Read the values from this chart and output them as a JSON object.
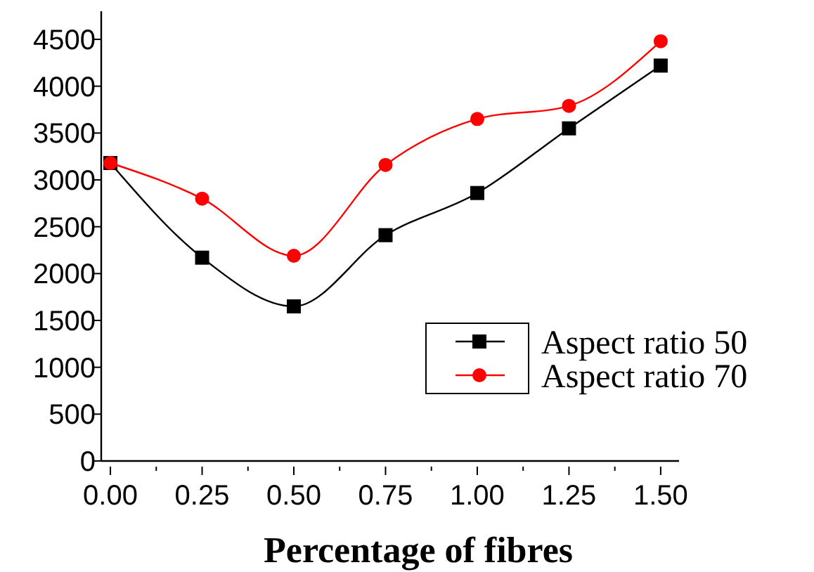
{
  "chart_data": {
    "type": "line",
    "xlabel": "Percentage of fibres",
    "x": [
      0,
      0.25,
      0.5,
      0.75,
      1.0,
      1.25,
      1.5
    ],
    "series": [
      {
        "name": "Aspect ratio 50",
        "color": "#000000",
        "marker": "square",
        "values": [
          3180,
          2170,
          1650,
          2410,
          2860,
          3550,
          4220
        ]
      },
      {
        "name": "Aspect ratio 70",
        "color": "#ff0000",
        "marker": "circle",
        "values": [
          3180,
          2800,
          2190,
          3160,
          3650,
          3790,
          4480
        ]
      }
    ],
    "xlim": [
      -0.025,
      1.55
    ],
    "ylim": [
      0,
      4800
    ],
    "xticks": [
      {
        "value": 0,
        "label": "0.00"
      },
      {
        "value": 0.125,
        "label": null
      },
      {
        "value": 0.25,
        "label": "0.25"
      },
      {
        "value": 0.375,
        "label": null
      },
      {
        "value": 0.5,
        "label": "0.50"
      },
      {
        "value": 0.625,
        "label": null
      },
      {
        "value": 0.75,
        "label": "0.75"
      },
      {
        "value": 0.875,
        "label": null
      },
      {
        "value": 1.0,
        "label": "1.00"
      },
      {
        "value": 1.125,
        "label": null
      },
      {
        "value": 1.25,
        "label": "1.25"
      },
      {
        "value": 1.375,
        "label": null
      },
      {
        "value": 1.5,
        "label": "1.50"
      }
    ],
    "yticks": [
      0,
      500,
      1000,
      1500,
      2000,
      2500,
      3000,
      3500,
      4000,
      4500
    ],
    "grid": false,
    "legend": "right"
  }
}
